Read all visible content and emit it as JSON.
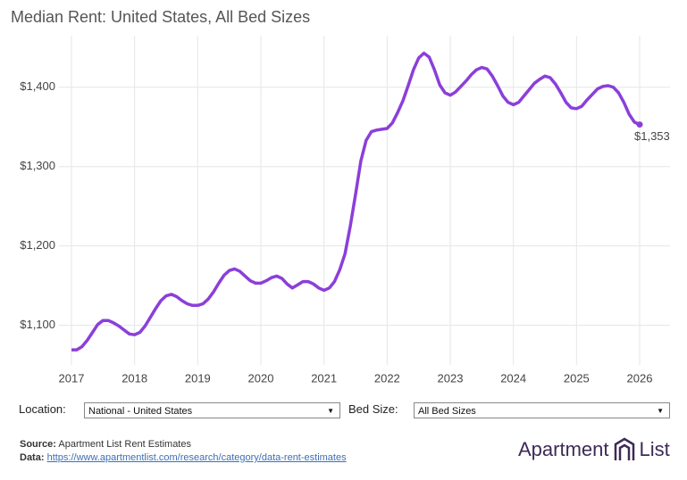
{
  "chart_data": {
    "type": "line",
    "title": "Median Rent: United States, All Bed Sizes",
    "categories": [
      "2017",
      null,
      null,
      null,
      null,
      null,
      null,
      null,
      null,
      null,
      null,
      null,
      "2018",
      null,
      null,
      null,
      null,
      null,
      null,
      null,
      null,
      null,
      null,
      null,
      "2019",
      null,
      null,
      null,
      null,
      null,
      null,
      null,
      null,
      null,
      null,
      null,
      "2020",
      null,
      null,
      null,
      null,
      null,
      null,
      null,
      null,
      null,
      null,
      null,
      "2021",
      null,
      null,
      null,
      null,
      null,
      null,
      null,
      null,
      null,
      null,
      null,
      "2022",
      null,
      null,
      null,
      null,
      null,
      null,
      null,
      null,
      null,
      null,
      null,
      "2023",
      null,
      null,
      null,
      null,
      null,
      null,
      null,
      null,
      null,
      null,
      null,
      "2024",
      null,
      null,
      null,
      null,
      null,
      null,
      null,
      null,
      null,
      null,
      null,
      "2025",
      null,
      null,
      null,
      null,
      null,
      null,
      null,
      null,
      null,
      null,
      null,
      "2026"
    ],
    "values": [
      1069,
      1069,
      1073,
      1081,
      1091,
      1101,
      1106,
      1106,
      1103,
      1099,
      1094,
      1089,
      1088,
      1091,
      1099,
      1110,
      1121,
      1131,
      1137,
      1139,
      1136,
      1131,
      1127,
      1125,
      1125,
      1127,
      1133,
      1142,
      1153,
      1163,
      1169,
      1171,
      1168,
      1162,
      1156,
      1153,
      1153,
      1156,
      1160,
      1162,
      1159,
      1152,
      1147,
      1151,
      1155,
      1155,
      1152,
      1147,
      1144,
      1147,
      1155,
      1170,
      1190,
      1225,
      1265,
      1307,
      1333,
      1344,
      1346,
      1347,
      1348,
      1355,
      1368,
      1383,
      1402,
      1422,
      1437,
      1443,
      1438,
      1422,
      1403,
      1393,
      1390,
      1394,
      1401,
      1408,
      1416,
      1422,
      1425,
      1423,
      1414,
      1402,
      1389,
      1381,
      1378,
      1381,
      1389,
      1397,
      1405,
      1410,
      1414,
      1412,
      1404,
      1393,
      1381,
      1374,
      1373,
      1376,
      1384,
      1391,
      1398,
      1401,
      1402,
      1400,
      1393,
      1381,
      1366,
      1356,
      1353
    ],
    "value_labels": [
      null,
      null,
      null,
      null,
      null,
      null,
      null,
      null,
      null,
      null,
      null,
      null,
      null,
      null,
      null,
      null,
      null,
      null,
      null,
      null,
      null,
      null,
      null,
      null,
      null,
      null,
      null,
      null,
      null,
      null,
      null,
      null,
      null,
      null,
      null,
      null,
      null,
      null,
      null,
      null,
      null,
      null,
      null,
      null,
      null,
      null,
      null,
      null,
      null,
      null,
      null,
      null,
      null,
      null,
      null,
      null,
      null,
      null,
      null,
      null,
      null,
      null,
      null,
      null,
      null,
      null,
      null,
      null,
      null,
      null,
      null,
      null,
      null,
      null,
      null,
      null,
      null,
      null,
      null,
      null,
      null,
      null,
      null,
      null,
      null,
      null,
      null,
      null,
      null,
      null,
      null,
      null,
      null,
      null,
      null,
      null,
      null,
      null,
      null,
      null,
      null,
      null,
      null,
      null,
      null,
      null,
      null,
      null,
      "$1,353"
    ],
    "color": "#8b3fd9",
    "ylim": [
      1050,
      1465
    ],
    "yticks": [
      {
        "value": 1100,
        "label": "$1,100"
      },
      {
        "value": 1200,
        "label": "$1,200"
      },
      {
        "value": 1300,
        "label": "$1,300"
      },
      {
        "value": 1400,
        "label": "$1,400"
      }
    ],
    "grid": true
  },
  "controls": {
    "location_label": "Location:",
    "location_value": "National - United States",
    "bed_label": "Bed Size:",
    "bed_value": "All Bed Sizes"
  },
  "footer": {
    "source_label": "Source:",
    "source_text": "Apartment List Rent Estimates",
    "data_label": "Data:",
    "data_link": "https://www.apartmentlist.com/research/category/data-rent-estimates",
    "logo_left": "Apartment",
    "logo_right": "List"
  }
}
